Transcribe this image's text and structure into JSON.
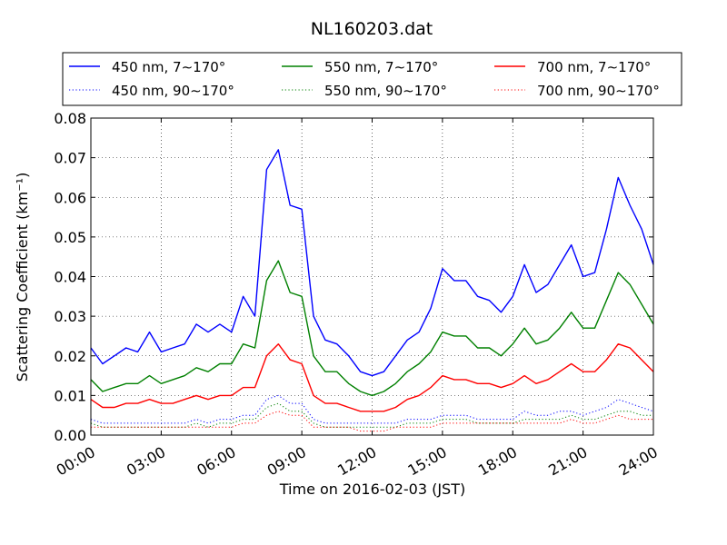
{
  "chart_data": {
    "type": "line",
    "title": "NL160203.dat",
    "xlabel": "Time on 2016-02-03 (JST)",
    "ylabel": "Scattering Coefficient (km⁻¹)",
    "xlim": [
      "00:00",
      "24:00"
    ],
    "ylim": [
      0,
      0.08
    ],
    "grid": true,
    "legend_position": "top, above plot, 3 columns",
    "x_ticks": [
      "00:00",
      "03:00",
      "06:00",
      "09:00",
      "12:00",
      "15:00",
      "18:00",
      "21:00",
      "24:00"
    ],
    "y_ticks": [
      "0.00",
      "0.01",
      "0.02",
      "0.03",
      "0.04",
      "0.05",
      "0.06",
      "0.07",
      "0.08"
    ],
    "x": [
      "00:00",
      "00:30",
      "01:00",
      "01:30",
      "02:00",
      "02:30",
      "03:00",
      "03:30",
      "04:00",
      "04:30",
      "05:00",
      "05:30",
      "06:00",
      "06:30",
      "07:00",
      "07:30",
      "08:00",
      "08:30",
      "09:00",
      "09:30",
      "10:00",
      "10:30",
      "11:00",
      "11:30",
      "12:00",
      "12:30",
      "13:00",
      "13:30",
      "14:00",
      "14:30",
      "15:00",
      "15:30",
      "16:00",
      "16:30",
      "17:00",
      "17:30",
      "18:00",
      "18:30",
      "19:00",
      "19:30",
      "20:00",
      "20:30",
      "21:00",
      "21:30",
      "22:00",
      "22:30",
      "23:00",
      "23:30",
      "24:00"
    ],
    "series": [
      {
        "name": "450 nm, 7∼170°",
        "style": "solid",
        "color": "#0000ff",
        "values": [
          0.022,
          0.018,
          0.02,
          0.022,
          0.021,
          0.026,
          0.021,
          0.022,
          0.023,
          0.028,
          0.026,
          0.028,
          0.026,
          0.035,
          0.03,
          0.067,
          0.072,
          0.058,
          0.057,
          0.03,
          0.024,
          0.023,
          0.02,
          0.016,
          0.015,
          0.016,
          0.02,
          0.024,
          0.026,
          0.032,
          0.042,
          0.039,
          0.039,
          0.035,
          0.034,
          0.031,
          0.035,
          0.043,
          0.036,
          0.038,
          0.043,
          0.048,
          0.04,
          0.041,
          0.052,
          0.065,
          0.058,
          0.052,
          0.043
        ]
      },
      {
        "name": "450 nm, 90∼170°",
        "style": "dotted",
        "color": "#0000ff",
        "values": [
          0.004,
          0.003,
          0.003,
          0.003,
          0.003,
          0.003,
          0.003,
          0.003,
          0.003,
          0.004,
          0.003,
          0.004,
          0.004,
          0.005,
          0.005,
          0.009,
          0.01,
          0.008,
          0.008,
          0.004,
          0.003,
          0.003,
          0.003,
          0.003,
          0.003,
          0.003,
          0.003,
          0.004,
          0.004,
          0.004,
          0.005,
          0.005,
          0.005,
          0.004,
          0.004,
          0.004,
          0.004,
          0.006,
          0.005,
          0.005,
          0.006,
          0.006,
          0.005,
          0.006,
          0.007,
          0.009,
          0.008,
          0.007,
          0.006
        ]
      },
      {
        "name": "550 nm, 7∼170°",
        "style": "solid",
        "color": "#008000",
        "values": [
          0.014,
          0.011,
          0.012,
          0.013,
          0.013,
          0.015,
          0.013,
          0.014,
          0.015,
          0.017,
          0.016,
          0.018,
          0.018,
          0.023,
          0.022,
          0.039,
          0.044,
          0.036,
          0.035,
          0.02,
          0.016,
          0.016,
          0.013,
          0.011,
          0.01,
          0.011,
          0.013,
          0.016,
          0.018,
          0.021,
          0.026,
          0.025,
          0.025,
          0.022,
          0.022,
          0.02,
          0.023,
          0.027,
          0.023,
          0.024,
          0.027,
          0.031,
          0.027,
          0.027,
          0.034,
          0.041,
          0.038,
          0.033,
          0.028
        ]
      },
      {
        "name": "550 nm, 90∼170°",
        "style": "dotted",
        "color": "#008000",
        "values": [
          0.003,
          0.002,
          0.002,
          0.002,
          0.002,
          0.002,
          0.002,
          0.002,
          0.002,
          0.003,
          0.002,
          0.003,
          0.003,
          0.004,
          0.004,
          0.007,
          0.008,
          0.006,
          0.006,
          0.003,
          0.002,
          0.002,
          0.002,
          0.002,
          0.002,
          0.002,
          0.002,
          0.003,
          0.003,
          0.003,
          0.004,
          0.004,
          0.004,
          0.003,
          0.003,
          0.003,
          0.003,
          0.004,
          0.004,
          0.004,
          0.004,
          0.005,
          0.004,
          0.004,
          0.005,
          0.006,
          0.006,
          0.005,
          0.005
        ]
      },
      {
        "name": "700 nm, 7∼170°",
        "style": "solid",
        "color": "#ff0000",
        "values": [
          0.009,
          0.007,
          0.007,
          0.008,
          0.008,
          0.009,
          0.008,
          0.008,
          0.009,
          0.01,
          0.009,
          0.01,
          0.01,
          0.012,
          0.012,
          0.02,
          0.023,
          0.019,
          0.018,
          0.01,
          0.008,
          0.008,
          0.007,
          0.006,
          0.006,
          0.006,
          0.007,
          0.009,
          0.01,
          0.012,
          0.015,
          0.014,
          0.014,
          0.013,
          0.013,
          0.012,
          0.013,
          0.015,
          0.013,
          0.014,
          0.016,
          0.018,
          0.016,
          0.016,
          0.019,
          0.023,
          0.022,
          0.019,
          0.016
        ]
      },
      {
        "name": "700 nm, 90∼170°",
        "style": "dotted",
        "color": "#ff0000",
        "values": [
          0.002,
          0.002,
          0.002,
          0.002,
          0.002,
          0.002,
          0.002,
          0.002,
          0.002,
          0.002,
          0.002,
          0.002,
          0.002,
          0.003,
          0.003,
          0.005,
          0.006,
          0.005,
          0.005,
          0.002,
          0.002,
          0.002,
          0.002,
          0.001,
          0.001,
          0.001,
          0.002,
          0.002,
          0.002,
          0.002,
          0.003,
          0.003,
          0.003,
          0.003,
          0.003,
          0.003,
          0.003,
          0.003,
          0.003,
          0.003,
          0.003,
          0.004,
          0.003,
          0.003,
          0.004,
          0.005,
          0.004,
          0.004,
          0.004
        ]
      }
    ]
  }
}
